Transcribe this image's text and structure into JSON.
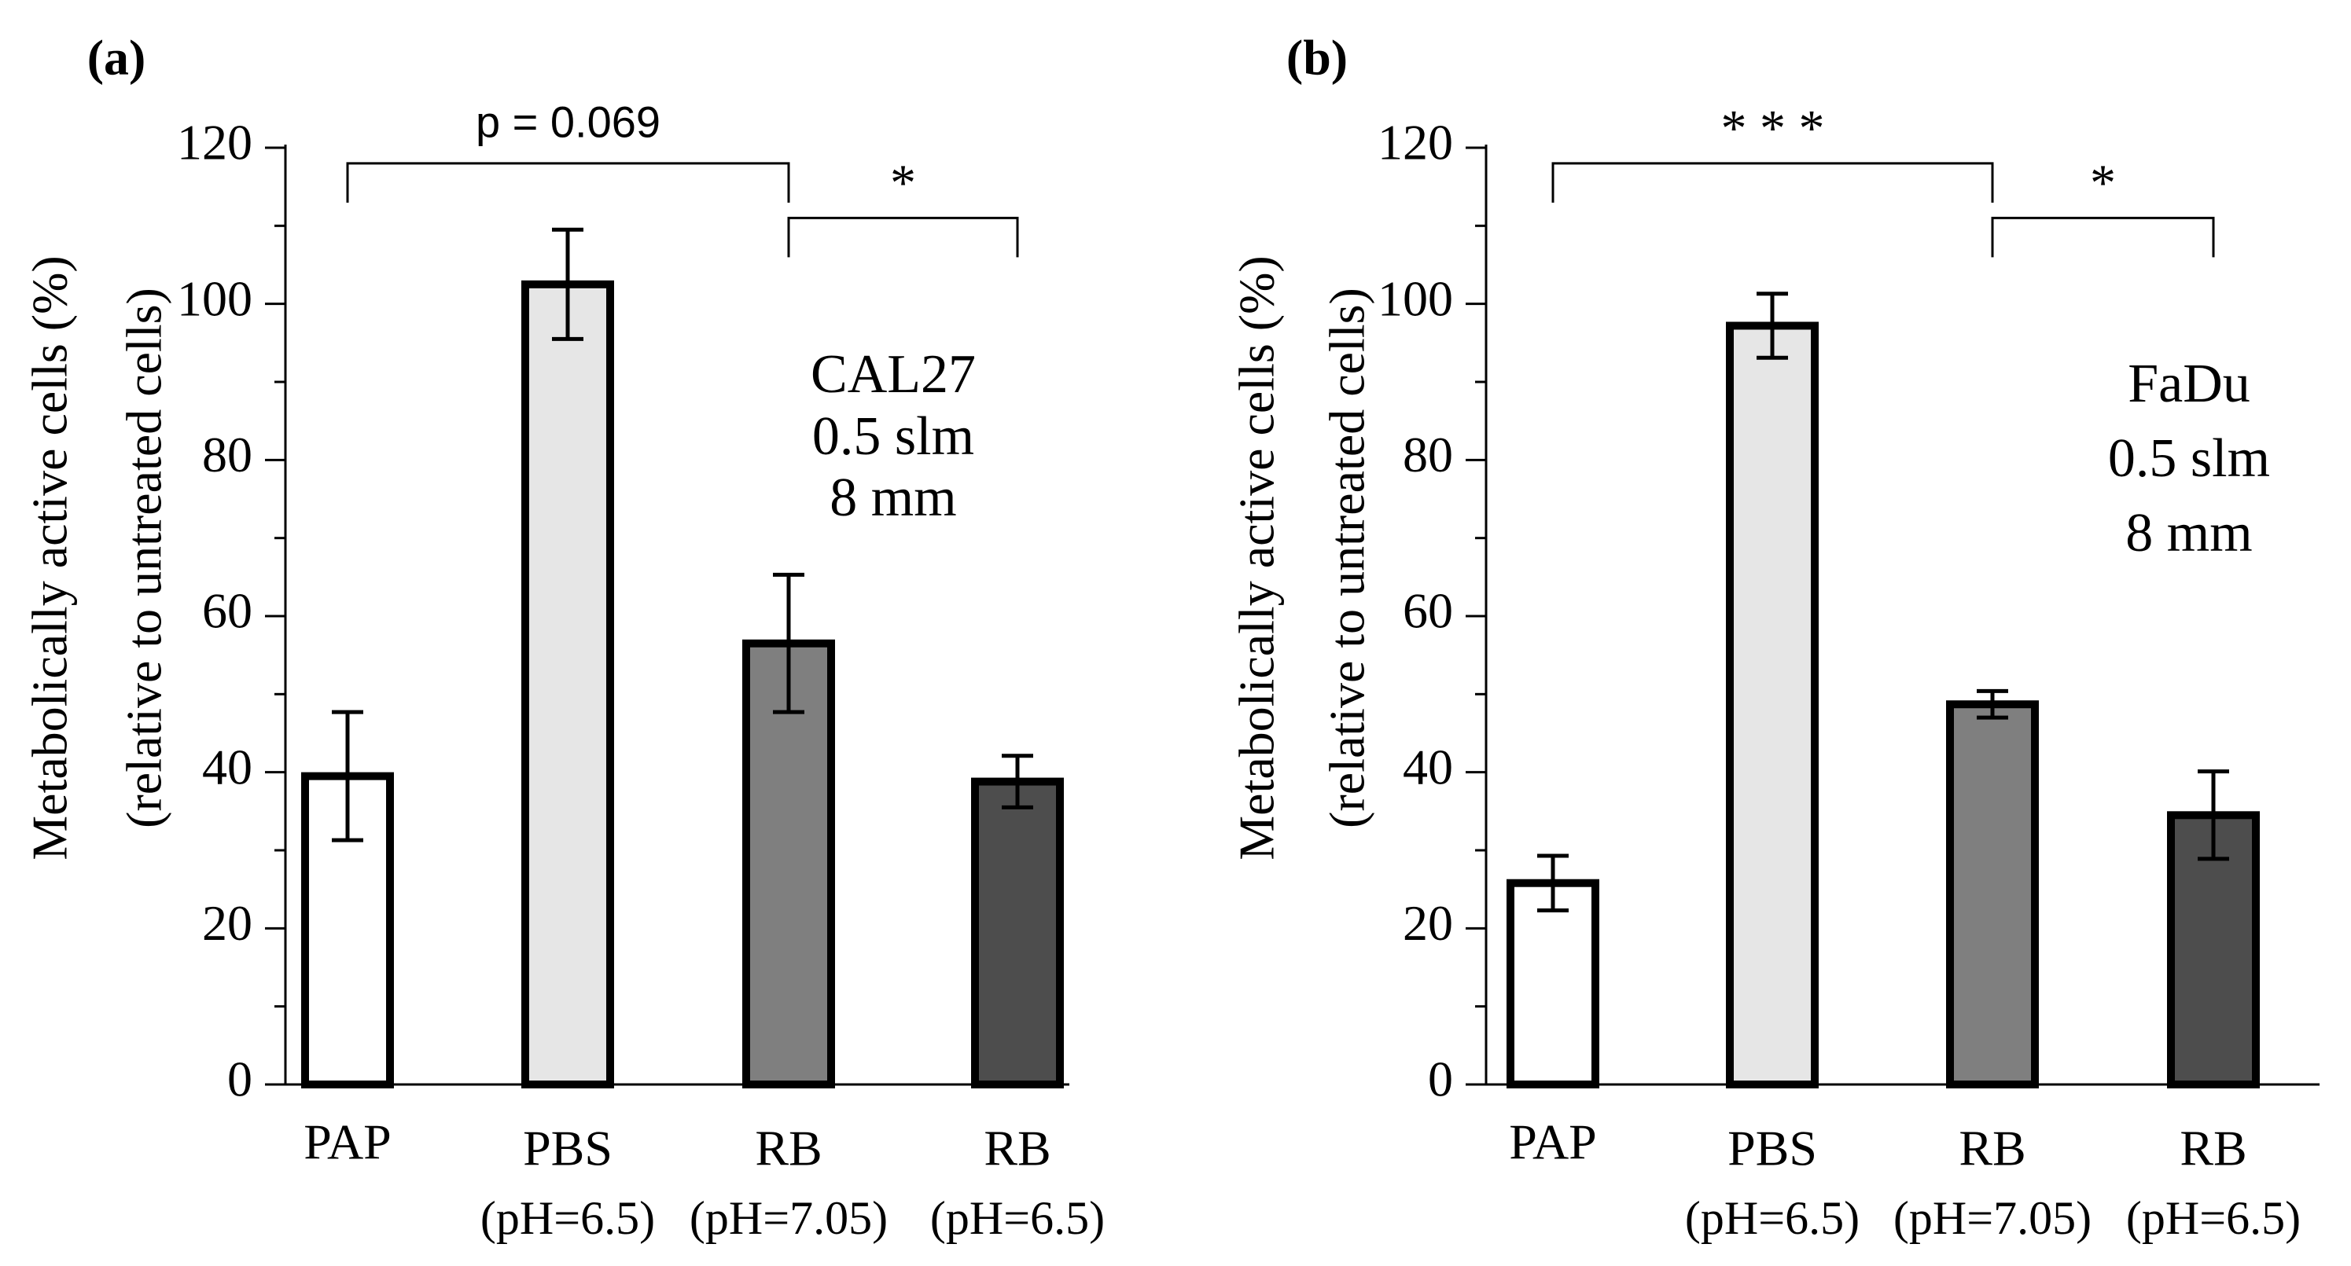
{
  "chart_data": [
    {
      "type": "bar",
      "panel_label": "(a)",
      "categories": [
        {
          "line1": "PAP",
          "line2": ""
        },
        {
          "line1": "PBS",
          "line2": "(pH=6.5)"
        },
        {
          "line1": "RB",
          "line2": "(pH=7.05)"
        },
        {
          "line1": "RB",
          "line2": "(pH=6.5)"
        }
      ],
      "values": [
        39.5,
        102.5,
        56.5,
        38.8
      ],
      "errors": [
        8.2,
        7.0,
        8.8,
        3.3
      ],
      "bar_colors": [
        "#ffffff",
        "#e6e6e6",
        "#7f7f7f",
        "#4d4d4d"
      ],
      "ylabel_line1": "Metabolically active cells (%)",
      "ylabel_line2": "(relative to untreated cells)",
      "ylim": [
        0,
        120
      ],
      "yticks": [
        "0",
        "20",
        "40",
        "60",
        "80",
        "100",
        "120"
      ],
      "annotation_lines": [
        "CAL27",
        "0.5 slm",
        "8 mm"
      ],
      "significance": [
        {
          "from": 0,
          "to": 2,
          "label": "p = 0.069",
          "level": 118
        },
        {
          "from": 2,
          "to": 3,
          "label": "*",
          "level": 111
        }
      ]
    },
    {
      "type": "bar",
      "panel_label": "(b)",
      "categories": [
        {
          "line1": "PAP",
          "line2": ""
        },
        {
          "line1": "PBS",
          "line2": "(pH=6.5)"
        },
        {
          "line1": "RB",
          "line2": "(pH=7.05)"
        },
        {
          "line1": "RB",
          "line2": "(pH=6.5)"
        }
      ],
      "values": [
        25.8,
        97.2,
        48.7,
        34.5
      ],
      "errors": [
        3.5,
        4.1,
        1.7,
        5.6
      ],
      "bar_colors": [
        "#ffffff",
        "#e6e6e6",
        "#7f7f7f",
        "#4d4d4d"
      ],
      "ylabel_line1": "Metabolically active cells (%)",
      "ylabel_line2": "(relative to untreated cells)",
      "ylim": [
        0,
        120
      ],
      "yticks": [
        "0",
        "20",
        "40",
        "60",
        "80",
        "100",
        "120"
      ],
      "annotation_lines": [
        "FaDu",
        "0.5 slm",
        "8 mm"
      ],
      "significance": [
        {
          "from": 0,
          "to": 2,
          "label": "* * *",
          "level": 118
        },
        {
          "from": 2,
          "to": 3,
          "label": "*",
          "level": 111
        }
      ]
    }
  ]
}
